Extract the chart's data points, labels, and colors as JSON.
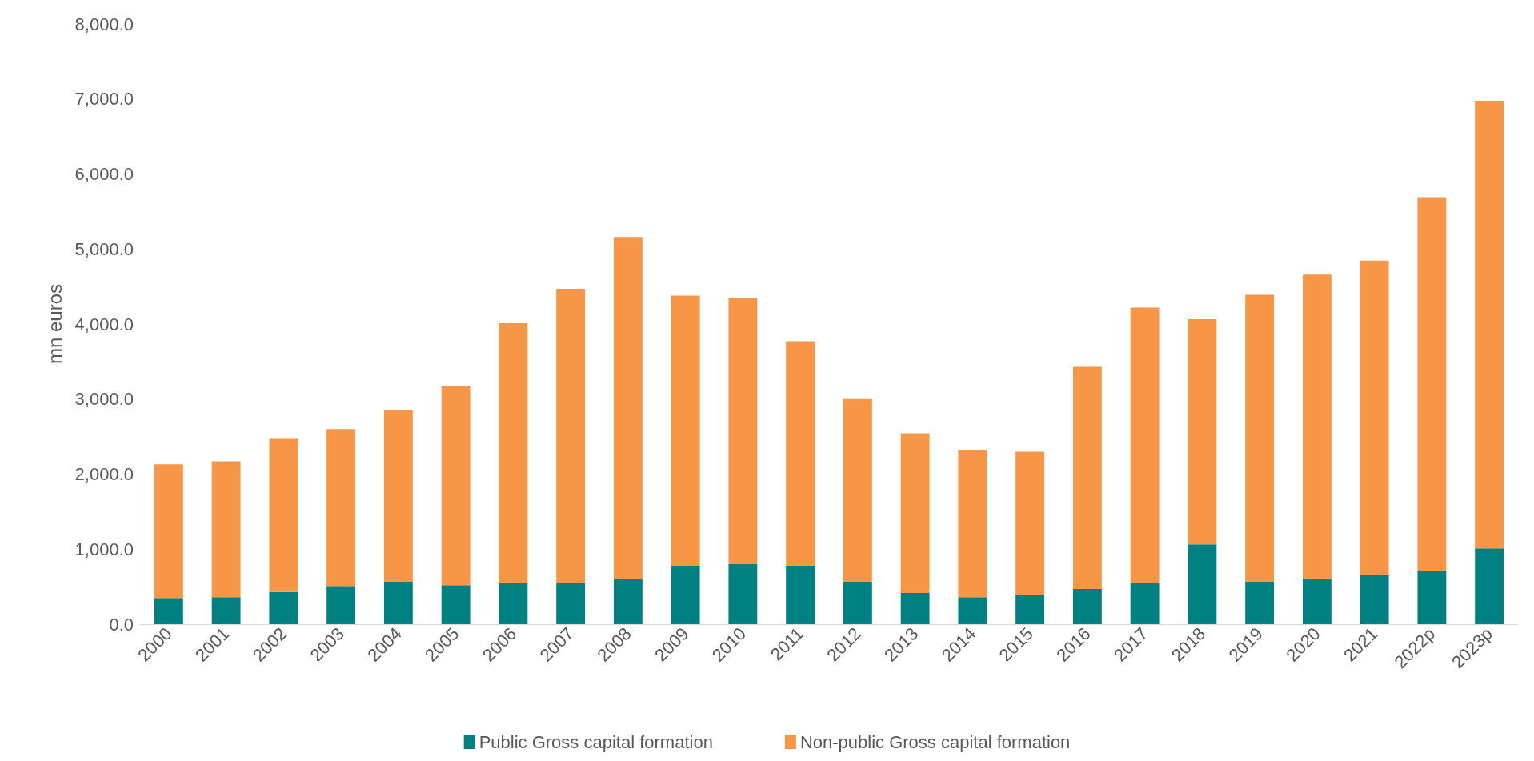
{
  "chart_data": {
    "type": "bar",
    "stacked": true,
    "ylabel": "mn euros",
    "categories": [
      "2000",
      "2001",
      "2002",
      "2003",
      "2004",
      "2005",
      "2006",
      "2007",
      "2008",
      "2009",
      "2010",
      "2011",
      "2012",
      "2013",
      "2014",
      "2015",
      "2016",
      "2017",
      "2018",
      "2019",
      "2020",
      "2021",
      "2022p",
      "2023p"
    ],
    "series": [
      {
        "name": "Public Gross capital formation",
        "color": "#008080",
        "values": [
          350,
          360,
          430,
          510,
          570,
          520,
          545,
          545,
          600,
          780,
          805,
          780,
          570,
          415,
          360,
          390,
          470,
          545,
          1065,
          570,
          610,
          660,
          715,
          1010
        ]
      },
      {
        "name": "Non-public Gross capital formation",
        "color": "#f79646",
        "values": [
          1780,
          1810,
          2050,
          2090,
          2290,
          2660,
          3465,
          3925,
          4560,
          3600,
          3545,
          2990,
          2440,
          2130,
          1965,
          1910,
          2960,
          3675,
          3000,
          3820,
          4050,
          4185,
          4975,
          5965
        ]
      }
    ],
    "ylim": [
      0,
      8000
    ],
    "yticks": [
      {
        "value": 0,
        "label": "0.0"
      },
      {
        "value": 1000,
        "label": "1,000.0"
      },
      {
        "value": 2000,
        "label": "2,000.0"
      },
      {
        "value": 3000,
        "label": "3,000.0"
      },
      {
        "value": 4000,
        "label": "4,000.0"
      },
      {
        "value": 5000,
        "label": "5,000.0"
      },
      {
        "value": 6000,
        "label": "6,000.0"
      },
      {
        "value": 7000,
        "label": "7,000.0"
      },
      {
        "value": 8000,
        "label": "8,000.0"
      }
    ],
    "grid": false,
    "legend": "bottom"
  }
}
